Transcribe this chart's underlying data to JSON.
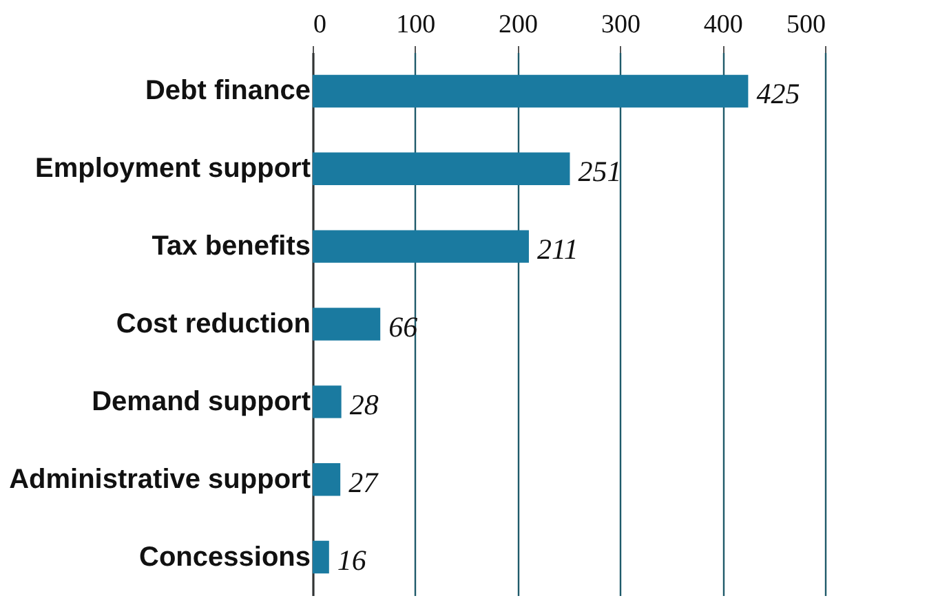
{
  "chart_data": {
    "type": "bar",
    "orientation": "horizontal",
    "categories": [
      "Debt finance",
      "Employment support",
      "Tax benefits",
      "Cost reduction",
      "Demand support",
      "Administrative support",
      "Concessions"
    ],
    "values": [
      425,
      251,
      211,
      66,
      28,
      27,
      16
    ],
    "color": "#1a7aa0",
    "xlim": [
      0,
      500
    ],
    "xticks": [
      0,
      100,
      200,
      300,
      400,
      500
    ],
    "grid": true,
    "data_labels": true
  }
}
